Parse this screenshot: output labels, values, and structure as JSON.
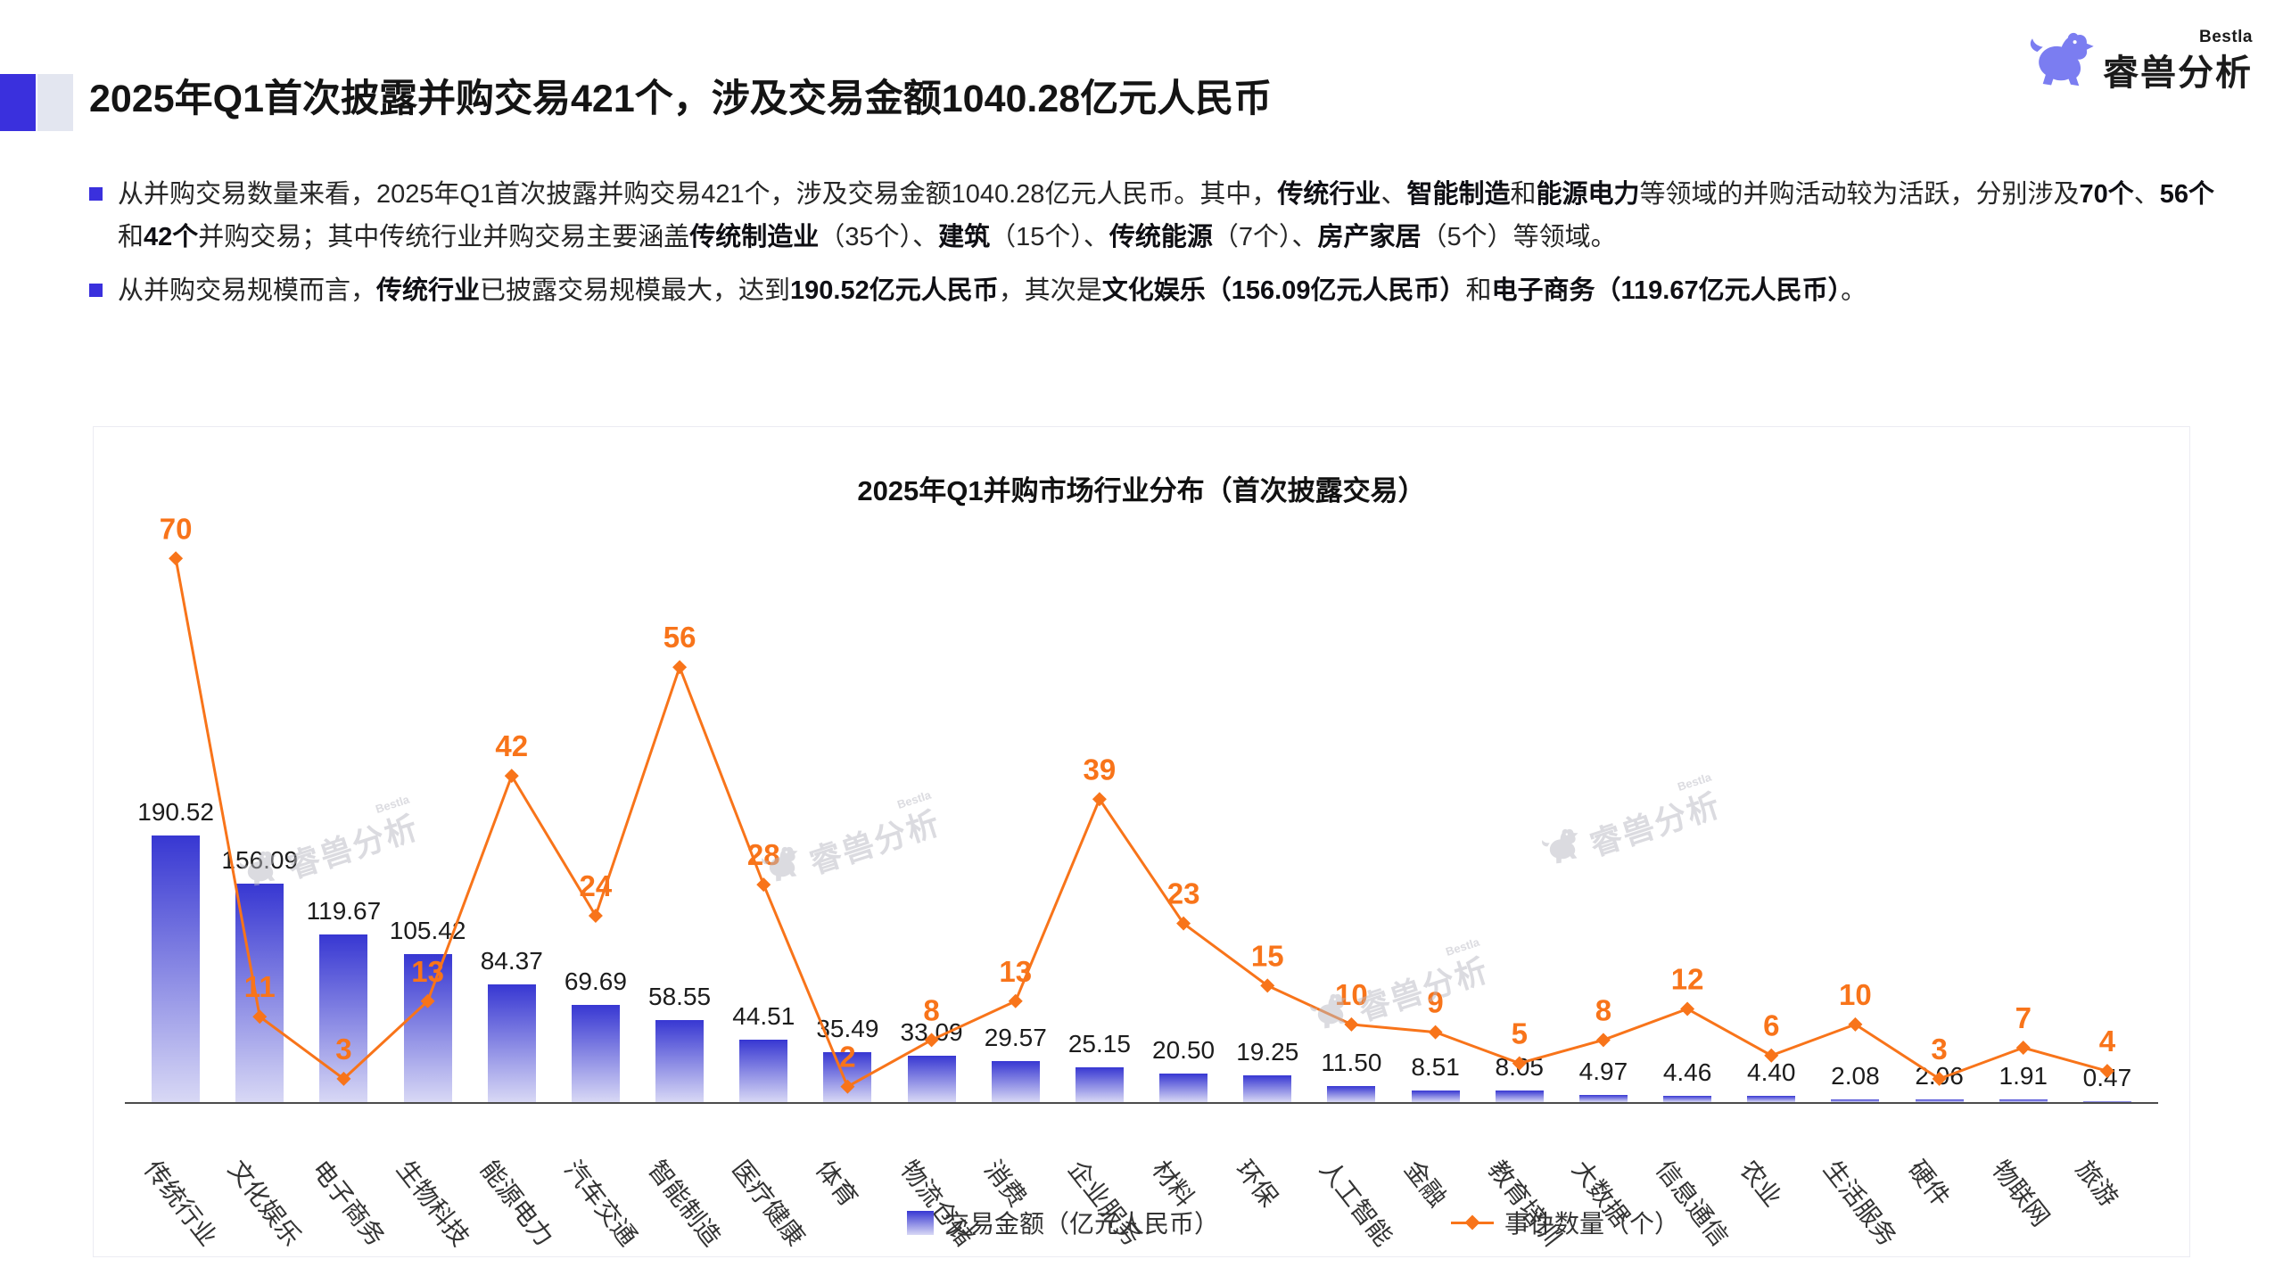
{
  "header": {
    "title": "2025年Q1首次披露并购交易421个，涉及交易金额1040.28亿元人民币",
    "logo_name": "睿兽分析",
    "logo_tag": "Bestla"
  },
  "colors": {
    "accent": "#3a30dd",
    "logo": "#7b7df1",
    "bar_top": "#3737d2",
    "bar_bottom": "#d8d8f5",
    "line": "#f8741a"
  },
  "bullets": [
    {
      "segments": [
        {
          "t": "从并购交易数量来看，2025年Q1首次披露并购交易421个，涉及交易金额1040.28亿元人民币。其中，",
          "b": false
        },
        {
          "t": "传统行业",
          "b": true
        },
        {
          "t": "、",
          "b": false
        },
        {
          "t": "智能制造",
          "b": true
        },
        {
          "t": "和",
          "b": false
        },
        {
          "t": "能源电力",
          "b": true
        },
        {
          "t": "等领域的并购活动较为活跃，分别涉及",
          "b": false
        },
        {
          "t": "70个",
          "b": true
        },
        {
          "t": "、",
          "b": false
        },
        {
          "t": "56个",
          "b": true
        },
        {
          "t": "和",
          "b": false
        },
        {
          "t": "42个",
          "b": true
        },
        {
          "t": "并购交易；其中传统行业并购交易主要涵盖",
          "b": false
        },
        {
          "t": "传统制造业",
          "b": true
        },
        {
          "t": "（35个）、",
          "b": false
        },
        {
          "t": "建筑",
          "b": true
        },
        {
          "t": "（15个）、",
          "b": false
        },
        {
          "t": "传统能源",
          "b": true
        },
        {
          "t": "（7个）、",
          "b": false
        },
        {
          "t": "房产家居",
          "b": true
        },
        {
          "t": "（5个）等领域。",
          "b": false
        }
      ]
    },
    {
      "segments": [
        {
          "t": "从并购交易规模而言，",
          "b": false
        },
        {
          "t": "传统行业",
          "b": true
        },
        {
          "t": "已披露交易规模最大，达到",
          "b": false
        },
        {
          "t": "190.52亿元人民币",
          "b": true
        },
        {
          "t": "，其次是",
          "b": false
        },
        {
          "t": "文化娱乐（156.09亿元人民币）",
          "b": true
        },
        {
          "t": "和",
          "b": false
        },
        {
          "t": "电子商务（119.67亿元人民币）",
          "b": true
        },
        {
          "t": "。",
          "b": false
        }
      ]
    }
  ],
  "chart_data": {
    "type": "bar+line",
    "title": "2025年Q1并购市场行业分布（首次披露交易）",
    "categories": [
      "传统行业",
      "文化娱乐",
      "电子商务",
      "生物科技",
      "能源电力",
      "汽车交通",
      "智能制造",
      "医疗健康",
      "体育",
      "物流仓储",
      "消费",
      "企业服务",
      "材料",
      "环保",
      "人工智能",
      "金融",
      "教育培训",
      "大数据",
      "信息通信",
      "农业",
      "生活服务",
      "硬件",
      "物联网",
      "旅游"
    ],
    "series": [
      {
        "name": "交易金额（亿元人民币）",
        "type": "bar",
        "values": [
          190.52,
          156.09,
          119.67,
          105.42,
          84.37,
          69.69,
          58.55,
          44.51,
          35.49,
          33.09,
          29.57,
          25.15,
          20.5,
          19.25,
          11.5,
          8.51,
          8.05,
          4.97,
          4.46,
          4.4,
          2.08,
          2.06,
          1.91,
          0.47
        ]
      },
      {
        "name": "事件数量（个）",
        "type": "line",
        "values": [
          70,
          11,
          3,
          13,
          42,
          24,
          56,
          28,
          2,
          8,
          13,
          39,
          23,
          15,
          10,
          9,
          5,
          8,
          12,
          6,
          10,
          3,
          7,
          4
        ]
      }
    ],
    "legend": [
      "交易金额（亿元人民币）",
      "事件数量（个）"
    ],
    "legend_position": "bottom",
    "x_labels_rotated": true,
    "grid": false,
    "y_axis_visible": false,
    "bar_value_decimals": 2,
    "watermark": {
      "text": "睿兽分析",
      "tag": "Bestla"
    }
  }
}
